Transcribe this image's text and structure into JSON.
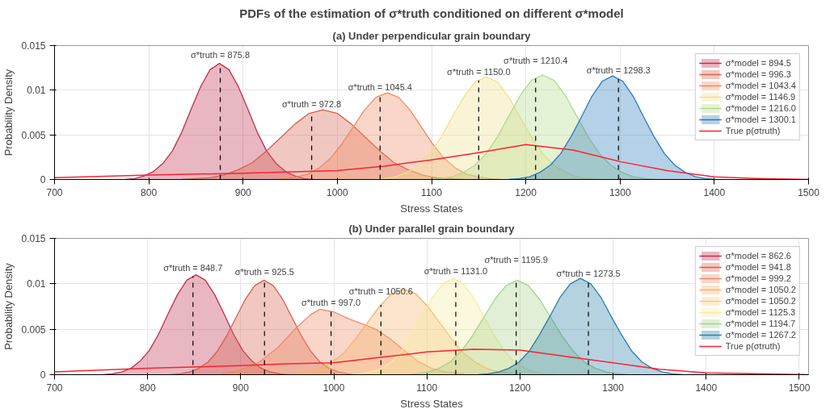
{
  "chart_data": [
    {
      "type": "area",
      "title": "PDFs of the estimation of σ*truth conditioned on different σ*model",
      "subtitle": "(a) Under perpendicular grain boundary",
      "xlabel": "Stress States",
      "ylabel": "Probability Density",
      "xlim": [
        700,
        1500
      ],
      "ylim": [
        0,
        0.015
      ],
      "xticks": [
        700,
        800,
        900,
        1000,
        1100,
        1200,
        1300,
        1400,
        1500
      ],
      "yticks": [
        0,
        0.005,
        0.01,
        0.015
      ],
      "grid": true,
      "legend": "top right",
      "series": [
        {
          "name": "σ*model = 894.5",
          "color": "#c0304f",
          "x": [
            775,
            785,
            795,
            805,
            815,
            825,
            835,
            845,
            855,
            865,
            875,
            885,
            895,
            905,
            915,
            925,
            935,
            945,
            955,
            965,
            975
          ],
          "values": [
            0,
            0.0001,
            0.0004,
            0.0009,
            0.0018,
            0.0032,
            0.0053,
            0.0079,
            0.0104,
            0.0123,
            0.013,
            0.0123,
            0.0104,
            0.0079,
            0.0053,
            0.0032,
            0.0018,
            0.0009,
            0.0004,
            0.0001,
            0
          ]
        },
        {
          "name": "σ*model = 996.3",
          "color": "#d6604d",
          "x": [
            835,
            850,
            865,
            880,
            895,
            910,
            925,
            940,
            955,
            970,
            985,
            1000,
            1015,
            1030,
            1045,
            1060,
            1075,
            1090,
            1105,
            1120,
            1135
          ],
          "values": [
            0,
            0.0001,
            0.0002,
            0.0005,
            0.0011,
            0.0019,
            0.0032,
            0.0047,
            0.0062,
            0.0074,
            0.0078,
            0.0074,
            0.0062,
            0.0047,
            0.0032,
            0.0019,
            0.0011,
            0.0005,
            0.0002,
            0.0001,
            0
          ]
        },
        {
          "name": "σ*model = 1043.4",
          "color": "#ef8a62",
          "x": [
            933,
            945,
            957,
            969,
            981,
            993,
            1005,
            1017,
            1029,
            1041,
            1053,
            1065,
            1077,
            1089,
            1101,
            1113,
            1125,
            1137,
            1149,
            1161,
            1173
          ],
          "values": [
            0,
            0.0001,
            0.0003,
            0.0006,
            0.0013,
            0.0024,
            0.004,
            0.0059,
            0.0078,
            0.0092,
            0.0097,
            0.0092,
            0.0078,
            0.0059,
            0.004,
            0.0024,
            0.0013,
            0.0006,
            0.0003,
            0.0001,
            0
          ]
        },
        {
          "name": "σ*model = 1146.9",
          "color": "#f2e08c",
          "x": [
            1038,
            1050,
            1062,
            1074,
            1086,
            1098,
            1110,
            1122,
            1134,
            1146,
            1158,
            1170,
            1182,
            1194,
            1206,
            1218,
            1230,
            1242,
            1254,
            1266,
            1278
          ],
          "values": [
            0,
            0.0001,
            0.0003,
            0.0008,
            0.0016,
            0.0029,
            0.0047,
            0.007,
            0.0092,
            0.0109,
            0.0115,
            0.0109,
            0.0092,
            0.007,
            0.0047,
            0.0029,
            0.0016,
            0.0008,
            0.0003,
            0.0001,
            0
          ]
        },
        {
          "name": "σ*model = 1216.0",
          "color": "#b3d98a",
          "x": [
            1098,
            1110,
            1122,
            1134,
            1146,
            1158,
            1170,
            1182,
            1194,
            1206,
            1218,
            1230,
            1242,
            1254,
            1266,
            1278,
            1290,
            1302,
            1314,
            1326,
            1338
          ],
          "values": [
            0,
            0.0001,
            0.0003,
            0.0008,
            0.0016,
            0.0029,
            0.0048,
            0.0071,
            0.0094,
            0.0111,
            0.0117,
            0.0111,
            0.0094,
            0.0071,
            0.0048,
            0.0029,
            0.0016,
            0.0008,
            0.0003,
            0.0001,
            0
          ]
        },
        {
          "name": "σ*model = 1300.1",
          "color": "#2b7bba",
          "x": [
            1182,
            1193,
            1204,
            1215,
            1226,
            1237,
            1248,
            1259,
            1270,
            1281,
            1292,
            1303,
            1314,
            1325,
            1336,
            1347,
            1358,
            1369,
            1380,
            1391,
            1402
          ],
          "values": [
            0,
            0.0001,
            0.0003,
            0.0008,
            0.0016,
            0.0029,
            0.0048,
            0.007,
            0.0093,
            0.011,
            0.0116,
            0.011,
            0.0093,
            0.007,
            0.0048,
            0.0029,
            0.0016,
            0.0008,
            0.0003,
            0.0001,
            0
          ]
        },
        {
          "name": "True p(σtruth)",
          "type": "line",
          "color": "#ff2030",
          "x": [
            700,
            800,
            900,
            1000,
            1050,
            1100,
            1150,
            1200,
            1250,
            1300,
            1350,
            1400,
            1450,
            1500
          ],
          "values": [
            0.0002,
            0.0005,
            0.0007,
            0.001,
            0.0015,
            0.0022,
            0.003,
            0.0039,
            0.0033,
            0.002,
            0.001,
            0.0003,
            0.0001,
            0
          ]
        }
      ],
      "ref_lines": [
        {
          "axis": "x",
          "value": 875.8,
          "label": "σ*truth = 875.8",
          "color": "#000000",
          "line_style": "dashed"
        },
        {
          "axis": "x",
          "value": 972.8,
          "label": "σ*truth = 972.8",
          "color": "#000000",
          "line_style": "dashed"
        },
        {
          "axis": "x",
          "value": 1045.4,
          "label": "σ*truth = 1045.4",
          "color": "#000000",
          "line_style": "dashed"
        },
        {
          "axis": "x",
          "value": 1150.0,
          "label": "σ*truth = 1150.0",
          "color": "#000000",
          "line_style": "dashed"
        },
        {
          "axis": "x",
          "value": 1210.4,
          "label": "σ*truth = 1210.4",
          "color": "#000000",
          "line_style": "dashed"
        },
        {
          "axis": "x",
          "value": 1298.3,
          "label": "σ*truth = 1298.3",
          "color": "#000000",
          "line_style": "dashed"
        }
      ]
    },
    {
      "type": "area",
      "title": "(b) Under parallel grain boundary",
      "xlabel": "Stress States",
      "ylabel": "Probability Density",
      "xlim": [
        700,
        1510
      ],
      "ylim": [
        0,
        0.015
      ],
      "xticks": [
        700,
        800,
        900,
        1000,
        1100,
        1200,
        1300,
        1400,
        1500
      ],
      "yticks": [
        0,
        0.005,
        0.01,
        0.015
      ],
      "grid": true,
      "legend": "top right",
      "series": [
        {
          "name": "σ*model = 862.6",
          "color": "#c0304f",
          "x": [
            752,
            762,
            772,
            782,
            792,
            802,
            812,
            822,
            832,
            842,
            852,
            862,
            872,
            882,
            892,
            902,
            912,
            922,
            932,
            942,
            952
          ],
          "values": [
            0,
            0.0001,
            0.0003,
            0.0007,
            0.0015,
            0.0027,
            0.0045,
            0.0067,
            0.0088,
            0.0104,
            0.011,
            0.0104,
            0.0088,
            0.0067,
            0.0045,
            0.0027,
            0.0015,
            0.0007,
            0.0003,
            0.0001,
            0
          ]
        },
        {
          "name": "σ*model = 941.8",
          "color": "#d6604d",
          "x": [
            825,
            835,
            845,
            855,
            865,
            875,
            885,
            895,
            905,
            915,
            925,
            935,
            945,
            955,
            965,
            975,
            985,
            995,
            1005,
            1015,
            1025
          ],
          "values": [
            0,
            0.0001,
            0.0003,
            0.0007,
            0.0014,
            0.0026,
            0.0043,
            0.0063,
            0.0083,
            0.0098,
            0.0104,
            0.0098,
            0.0083,
            0.0063,
            0.0043,
            0.0026,
            0.0014,
            0.0007,
            0.0003,
            0.0001,
            0
          ]
        },
        {
          "name": "σ*model = 999.2",
          "color": "#ef8a62",
          "x": [
            880,
            900,
            920,
            940,
            960,
            975,
            985,
            1000,
            1015,
            1030,
            1045,
            1060,
            1075,
            1090,
            1105,
            1120,
            1140
          ],
          "values": [
            0.0001,
            0.0005,
            0.0014,
            0.003,
            0.0052,
            0.0066,
            0.0072,
            0.0069,
            0.0062,
            0.0056,
            0.005,
            0.004,
            0.0027,
            0.0015,
            0.0007,
            0.0003,
            0.0001
          ]
        },
        {
          "name": "σ*model = 1050.2",
          "color": "#f6b26b",
          "x": [
            945,
            958,
            971,
            984,
            997,
            1010,
            1023,
            1036,
            1049,
            1062,
            1075,
            1088,
            1101,
            1114,
            1127,
            1140,
            1153,
            1166,
            1179,
            1192,
            1205
          ],
          "values": [
            0,
            0.0001,
            0.0003,
            0.0006,
            0.0013,
            0.0023,
            0.0039,
            0.0057,
            0.0075,
            0.0089,
            0.0094,
            0.0089,
            0.0075,
            0.0057,
            0.0039,
            0.0023,
            0.0013,
            0.0006,
            0.0003,
            0.0001,
            0
          ]
        },
        {
          "name": "σ*model = 1050.2",
          "color": "#f8c98a"
        },
        {
          "name": "σ*model = 1125.3",
          "color": "#f5ec9e",
          "x": [
            1018,
            1029,
            1040,
            1051,
            1062,
            1073,
            1084,
            1095,
            1106,
            1117,
            1128,
            1139,
            1150,
            1161,
            1172,
            1183,
            1194,
            1205,
            1216,
            1227,
            1238
          ],
          "values": [
            0,
            0.0001,
            0.0003,
            0.0007,
            0.0014,
            0.0026,
            0.0044,
            0.0064,
            0.0085,
            0.01,
            0.0106,
            0.01,
            0.0085,
            0.0064,
            0.0044,
            0.0026,
            0.0014,
            0.0007,
            0.0003,
            0.0001,
            0
          ]
        },
        {
          "name": "σ*model = 1194.7",
          "color": "#a6d28a",
          "x": [
            1077,
            1089,
            1101,
            1113,
            1125,
            1137,
            1149,
            1161,
            1173,
            1185,
            1197,
            1209,
            1221,
            1233,
            1245,
            1257,
            1269,
            1281,
            1293,
            1305,
            1317
          ],
          "values": [
            0,
            0.0001,
            0.0003,
            0.0007,
            0.0014,
            0.0026,
            0.0043,
            0.0063,
            0.0083,
            0.0098,
            0.0104,
            0.0098,
            0.0083,
            0.0063,
            0.0043,
            0.0026,
            0.0014,
            0.0007,
            0.0003,
            0.0001,
            0
          ]
        },
        {
          "name": "σ*model = 1267.2",
          "color": "#2c7fa8",
          "x": [
            1155,
            1166,
            1177,
            1188,
            1199,
            1210,
            1221,
            1232,
            1243,
            1254,
            1265,
            1276,
            1287,
            1298,
            1309,
            1320,
            1331,
            1342,
            1353,
            1364,
            1375
          ],
          "values": [
            0,
            0.0001,
            0.0003,
            0.0007,
            0.0014,
            0.0026,
            0.0044,
            0.0064,
            0.0085,
            0.01,
            0.0106,
            0.01,
            0.0085,
            0.0064,
            0.0044,
            0.0026,
            0.0014,
            0.0007,
            0.0003,
            0.0001,
            0
          ]
        },
        {
          "name": "True p(σtruth)",
          "type": "line",
          "color": "#ff2030",
          "x": [
            700,
            800,
            900,
            950,
            1000,
            1050,
            1100,
            1150,
            1200,
            1250,
            1300,
            1350,
            1400,
            1450,
            1510
          ],
          "values": [
            0.0003,
            0.0007,
            0.001,
            0.0012,
            0.0013,
            0.0019,
            0.0025,
            0.0028,
            0.0027,
            0.002,
            0.0013,
            0.0006,
            0.0002,
            0.0001,
            0
          ]
        }
      ],
      "ref_lines": [
        {
          "axis": "x",
          "value": 848.7,
          "label": "σ*truth = 848.7",
          "color": "#000000",
          "line_style": "dashed"
        },
        {
          "axis": "x",
          "value": 925.5,
          "label": "σ*truth = 925.5",
          "color": "#000000",
          "line_style": "dashed"
        },
        {
          "axis": "x",
          "value": 997.0,
          "label": "σ*truth = 997.0",
          "color": "#000000",
          "line_style": "dashed"
        },
        {
          "axis": "x",
          "value": 1050.6,
          "label": "σ*truth = 1050.6",
          "color": "#000000",
          "line_style": "dashed"
        },
        {
          "axis": "x",
          "value": 1131.0,
          "label": "σ*truth = 1131.0",
          "color": "#000000",
          "line_style": "dashed"
        },
        {
          "axis": "x",
          "value": 1195.9,
          "label": "σ*truth = 1195.9",
          "color": "#000000",
          "line_style": "dashed"
        },
        {
          "axis": "x",
          "value": 1273.5,
          "label": "σ*truth = 1273.5",
          "color": "#000000",
          "line_style": "dashed"
        }
      ]
    }
  ]
}
